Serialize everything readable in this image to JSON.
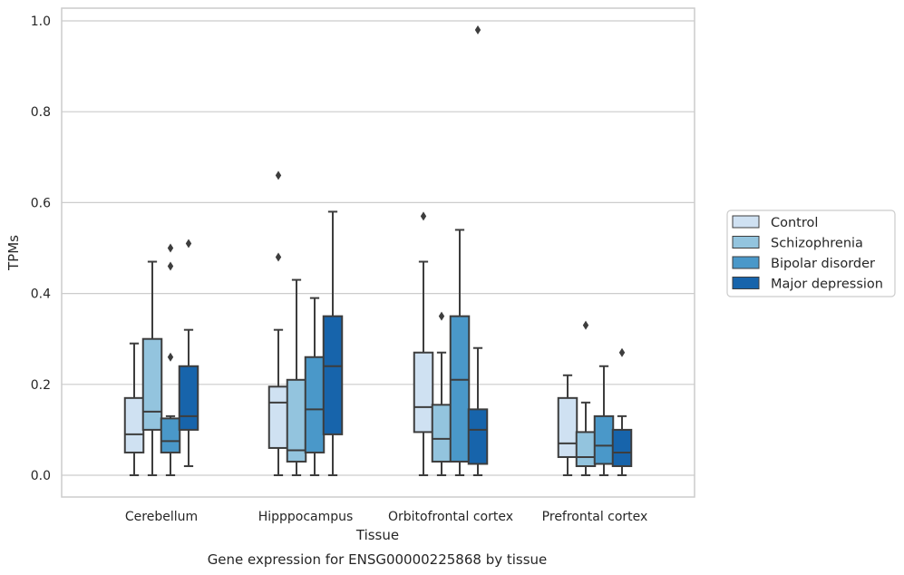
{
  "chart_data": {
    "type": "box",
    "title": "",
    "xlabel": "Tissue",
    "ylabel": "TPMs",
    "caption": "Gene expression for ENSG00000225868 by tissue",
    "categories": [
      "Cerebellum",
      "Hipppocampus",
      "Orbitofrontal cortex",
      "Prefrontal cortex"
    ],
    "ylim": [
      -0.045,
      1.03
    ],
    "yticks": [
      "0.0",
      "0.2",
      "0.4",
      "0.6",
      "0.8",
      "1.0"
    ],
    "grid": "horizontal",
    "legend_position": "right",
    "colors": {
      "Control": "#cfe1f2",
      "Schizophrenia": "#93c4de",
      "Bipolar disorder": "#4a98c9",
      "Major depression": "#1764ab",
      "edge": "#3d3d3d",
      "grid": "#cccccc",
      "frame": "#cccccc"
    },
    "series": [
      {
        "name": "Control",
        "boxes": [
          {
            "whislo": 0.0,
            "q1": 0.05,
            "med": 0.09,
            "q3": 0.17,
            "whishi": 0.29,
            "fliers": []
          },
          {
            "whislo": 0.0,
            "q1": 0.06,
            "med": 0.16,
            "q3": 0.195,
            "whishi": 0.32,
            "fliers": [
              0.48,
              0.66
            ]
          },
          {
            "whislo": 0.0,
            "q1": 0.095,
            "med": 0.15,
            "q3": 0.27,
            "whishi": 0.47,
            "fliers": [
              0.57
            ]
          },
          {
            "whislo": 0.0,
            "q1": 0.04,
            "med": 0.07,
            "q3": 0.17,
            "whishi": 0.22,
            "fliers": []
          }
        ]
      },
      {
        "name": "Schizophrenia",
        "boxes": [
          {
            "whislo": 0.0,
            "q1": 0.1,
            "med": 0.14,
            "q3": 0.3,
            "whishi": 0.47,
            "fliers": []
          },
          {
            "whislo": 0.0,
            "q1": 0.03,
            "med": 0.055,
            "q3": 0.21,
            "whishi": 0.43,
            "fliers": []
          },
          {
            "whislo": 0.0,
            "q1": 0.03,
            "med": 0.08,
            "q3": 0.155,
            "whishi": 0.27,
            "fliers": [
              0.35
            ]
          },
          {
            "whislo": 0.0,
            "q1": 0.02,
            "med": 0.04,
            "q3": 0.095,
            "whishi": 0.16,
            "fliers": [
              0.33
            ]
          }
        ]
      },
      {
        "name": "Bipolar disorder",
        "boxes": [
          {
            "whislo": 0.0,
            "q1": 0.05,
            "med": 0.075,
            "q3": 0.125,
            "whishi": 0.13,
            "fliers": [
              0.26,
              0.46,
              0.5
            ]
          },
          {
            "whislo": 0.0,
            "q1": 0.05,
            "med": 0.145,
            "q3": 0.26,
            "whishi": 0.39,
            "fliers": []
          },
          {
            "whislo": 0.0,
            "q1": 0.03,
            "med": 0.21,
            "q3": 0.35,
            "whishi": 0.54,
            "fliers": []
          },
          {
            "whislo": 0.0,
            "q1": 0.025,
            "med": 0.065,
            "q3": 0.13,
            "whishi": 0.24,
            "fliers": []
          }
        ]
      },
      {
        "name": "Major depression",
        "boxes": [
          {
            "whislo": 0.02,
            "q1": 0.1,
            "med": 0.13,
            "q3": 0.24,
            "whishi": 0.32,
            "fliers": [
              0.51
            ]
          },
          {
            "whislo": 0.0,
            "q1": 0.09,
            "med": 0.24,
            "q3": 0.35,
            "whishi": 0.58,
            "fliers": []
          },
          {
            "whislo": 0.0,
            "q1": 0.025,
            "med": 0.1,
            "q3": 0.145,
            "whishi": 0.28,
            "fliers": [
              0.98
            ]
          },
          {
            "whislo": 0.0,
            "q1": 0.02,
            "med": 0.05,
            "q3": 0.1,
            "whishi": 0.13,
            "fliers": [
              0.27
            ]
          }
        ]
      }
    ]
  }
}
